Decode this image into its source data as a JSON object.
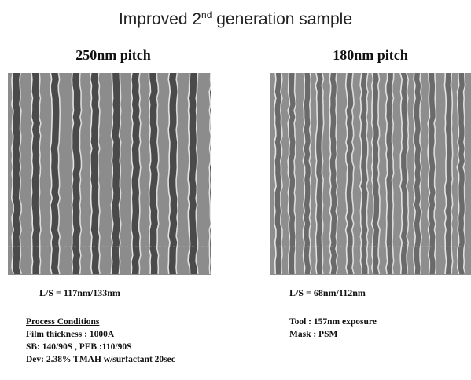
{
  "title": {
    "prefix": "Improved 2",
    "superscript": "nd",
    "suffix": " generation sample"
  },
  "panels": [
    {
      "heading": "250nm pitch",
      "line_space": "L/S = 117nm/133nm"
    },
    {
      "heading": "180nm pitch",
      "line_space": "L/S = 68nm/112nm"
    }
  ],
  "process_conditions": {
    "heading": "Process Conditions",
    "lines": [
      "Film thickness : 1000A",
      "SB: 140/90S , PEB :110/90S",
      "Dev: 2.38% TMAH w/surfactant 20sec"
    ]
  },
  "tool_info": [
    "Tool : 157nm exposure",
    "Mask : PSM"
  ]
}
